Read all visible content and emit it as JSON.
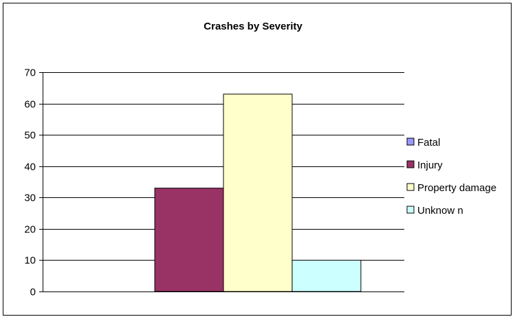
{
  "chart_data": {
    "type": "bar",
    "title": "Crashes by Severity",
    "xlabel": "",
    "ylabel": "",
    "ylim": [
      0,
      70
    ],
    "yticks": [
      0,
      10,
      20,
      30,
      40,
      50,
      60,
      70
    ],
    "grid": true,
    "legend_position": "right",
    "series": [
      {
        "name": "Fatal",
        "value": 0,
        "color": "#9999ff"
      },
      {
        "name": "Injury",
        "value": 33,
        "color": "#993366"
      },
      {
        "name": "Property damage",
        "value": 63,
        "color": "#ffffcc"
      },
      {
        "name": "Unknow n",
        "value": 10,
        "color": "#ccffff"
      }
    ]
  }
}
